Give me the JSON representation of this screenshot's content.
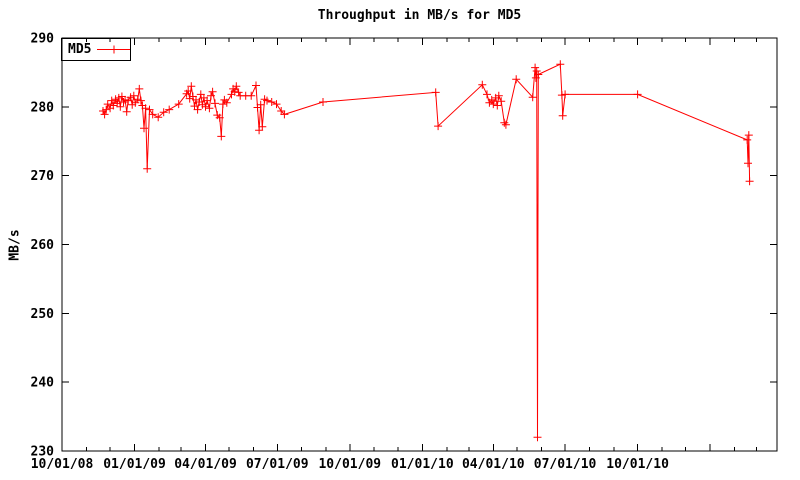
{
  "chart_data": {
    "type": "line",
    "title": "Throughput in MB/s for MD5",
    "ylabel": "MB/s",
    "xlabel": "",
    "series_name": "MD5",
    "line_color": "#ff0000",
    "background_color": "#ffffff",
    "axis_color": "#000000",
    "ylim": [
      230,
      290
    ],
    "grid": false,
    "legend_position": "top-left-inside",
    "marker": "plus",
    "y_ticks": [
      230,
      240,
      250,
      260,
      270,
      280,
      290
    ],
    "x_ticks": [
      {
        "date": "2008-10-01",
        "label": "10/01/08"
      },
      {
        "date": "2009-01-01",
        "label": "01/01/09"
      },
      {
        "date": "2009-04-01",
        "label": "04/01/09"
      },
      {
        "date": "2009-07-01",
        "label": "07/01/09"
      },
      {
        "date": "2009-10-01",
        "label": "10/01/09"
      },
      {
        "date": "2010-01-01",
        "label": "01/01/10"
      },
      {
        "date": "2010-04-01",
        "label": "04/01/10"
      },
      {
        "date": "2010-07-01",
        "label": "07/01/10"
      },
      {
        "date": "2010-10-01",
        "label": "10/01/10"
      },
      {
        "date": "2011-01-01",
        "label": ""
      }
    ],
    "x_minor_tick_interval": "month",
    "x_range": [
      "2008-10-01",
      "2011-03-26"
    ],
    "points": [
      [
        "2008-11-22",
        279.4
      ],
      [
        "2008-11-24",
        278.9
      ],
      [
        "2008-11-26",
        279.6
      ],
      [
        "2008-11-28",
        280.4
      ],
      [
        "2008-12-01",
        279.8
      ],
      [
        "2008-12-03",
        280.9
      ],
      [
        "2008-12-05",
        280.2
      ],
      [
        "2008-12-08",
        281.1
      ],
      [
        "2008-12-10",
        280.5
      ],
      [
        "2008-12-12",
        281.3
      ],
      [
        "2008-12-14",
        280.0
      ],
      [
        "2008-12-16",
        281.5
      ],
      [
        "2008-12-18",
        280.7
      ],
      [
        "2008-12-20",
        281.0
      ],
      [
        "2008-12-22",
        279.3
      ],
      [
        "2008-12-24",
        280.9
      ],
      [
        "2008-12-27",
        281.4
      ],
      [
        "2008-12-29",
        280.3
      ],
      [
        "2008-12-31",
        281.6
      ],
      [
        "2009-01-02",
        280.6
      ],
      [
        "2009-01-05",
        281.1
      ],
      [
        "2009-01-07",
        282.6
      ],
      [
        "2009-01-09",
        280.9
      ],
      [
        "2009-01-11",
        280.2
      ],
      [
        "2009-01-13",
        276.9
      ],
      [
        "2009-01-15",
        279.8
      ],
      [
        "2009-01-17",
        271.0
      ],
      [
        "2009-01-20",
        279.6
      ],
      [
        "2009-01-24",
        278.9
      ],
      [
        "2009-01-31",
        278.5
      ],
      [
        "2009-02-07",
        279.2
      ],
      [
        "2009-02-14",
        279.6
      ],
      [
        "2009-02-26",
        280.4
      ],
      [
        "2009-03-08",
        281.9
      ],
      [
        "2009-03-10",
        282.3
      ],
      [
        "2009-03-12",
        281.2
      ],
      [
        "2009-03-14",
        283.0
      ],
      [
        "2009-03-16",
        281.5
      ],
      [
        "2009-03-18",
        280.1
      ],
      [
        "2009-03-20",
        281.0
      ],
      [
        "2009-03-22",
        279.6
      ],
      [
        "2009-03-24",
        280.7
      ],
      [
        "2009-03-26",
        281.8
      ],
      [
        "2009-03-28",
        280.3
      ],
      [
        "2009-03-30",
        281.3
      ],
      [
        "2009-04-01",
        280.0
      ],
      [
        "2009-04-03",
        280.9
      ],
      [
        "2009-04-06",
        279.8
      ],
      [
        "2009-04-08",
        281.6
      ],
      [
        "2009-04-10",
        282.2
      ],
      [
        "2009-04-13",
        280.5
      ],
      [
        "2009-04-16",
        278.8
      ],
      [
        "2009-04-19",
        278.4
      ],
      [
        "2009-04-21",
        275.7
      ],
      [
        "2009-04-23",
        280.4
      ],
      [
        "2009-04-25",
        281.0
      ],
      [
        "2009-04-28",
        280.6
      ],
      [
        "2009-05-04",
        281.8
      ],
      [
        "2009-05-06",
        282.6
      ],
      [
        "2009-05-08",
        282.2
      ],
      [
        "2009-05-10",
        283.0
      ],
      [
        "2009-05-13",
        282.1
      ],
      [
        "2009-05-15",
        281.6
      ],
      [
        "2009-05-22",
        281.6
      ],
      [
        "2009-05-29",
        281.6
      ],
      [
        "2009-06-04",
        283.1
      ],
      [
        "2009-06-06",
        279.9
      ],
      [
        "2009-06-08",
        276.6
      ],
      [
        "2009-06-10",
        280.3
      ],
      [
        "2009-06-12",
        277.1
      ],
      [
        "2009-06-15",
        281.1
      ],
      [
        "2009-06-18",
        280.9
      ],
      [
        "2009-06-24",
        280.7
      ],
      [
        "2009-06-30",
        280.4
      ],
      [
        "2009-07-06",
        279.4
      ],
      [
        "2009-07-10",
        278.9
      ],
      [
        "2009-08-28",
        280.7
      ],
      [
        "2010-01-18",
        282.1
      ],
      [
        "2010-01-21",
        277.2
      ],
      [
        "2010-03-18",
        283.2
      ],
      [
        "2010-03-24",
        281.8
      ],
      [
        "2010-03-27",
        280.6
      ],
      [
        "2010-03-30",
        281.0
      ],
      [
        "2010-04-01",
        280.4
      ],
      [
        "2010-04-04",
        281.3
      ],
      [
        "2010-04-06",
        280.2
      ],
      [
        "2010-04-08",
        281.6
      ],
      [
        "2010-04-11",
        280.8
      ],
      [
        "2010-04-15",
        277.7
      ],
      [
        "2010-04-17",
        277.4
      ],
      [
        "2010-04-30",
        284.0
      ],
      [
        "2010-05-21",
        281.4
      ],
      [
        "2010-05-24",
        285.7
      ],
      [
        "2010-05-25",
        284.2
      ],
      [
        "2010-05-26",
        285.2
      ],
      [
        "2010-05-27",
        232.0
      ],
      [
        "2010-05-28",
        284.7
      ],
      [
        "2010-06-25",
        286.2
      ],
      [
        "2010-06-27",
        281.7
      ],
      [
        "2010-06-28",
        278.7
      ],
      [
        "2010-07-01",
        281.8
      ],
      [
        "2010-10-01",
        281.8
      ],
      [
        "2011-02-17",
        275.2
      ],
      [
        "2011-02-18",
        271.8
      ],
      [
        "2011-02-19",
        275.9
      ],
      [
        "2011-02-20",
        269.2
      ]
    ]
  }
}
